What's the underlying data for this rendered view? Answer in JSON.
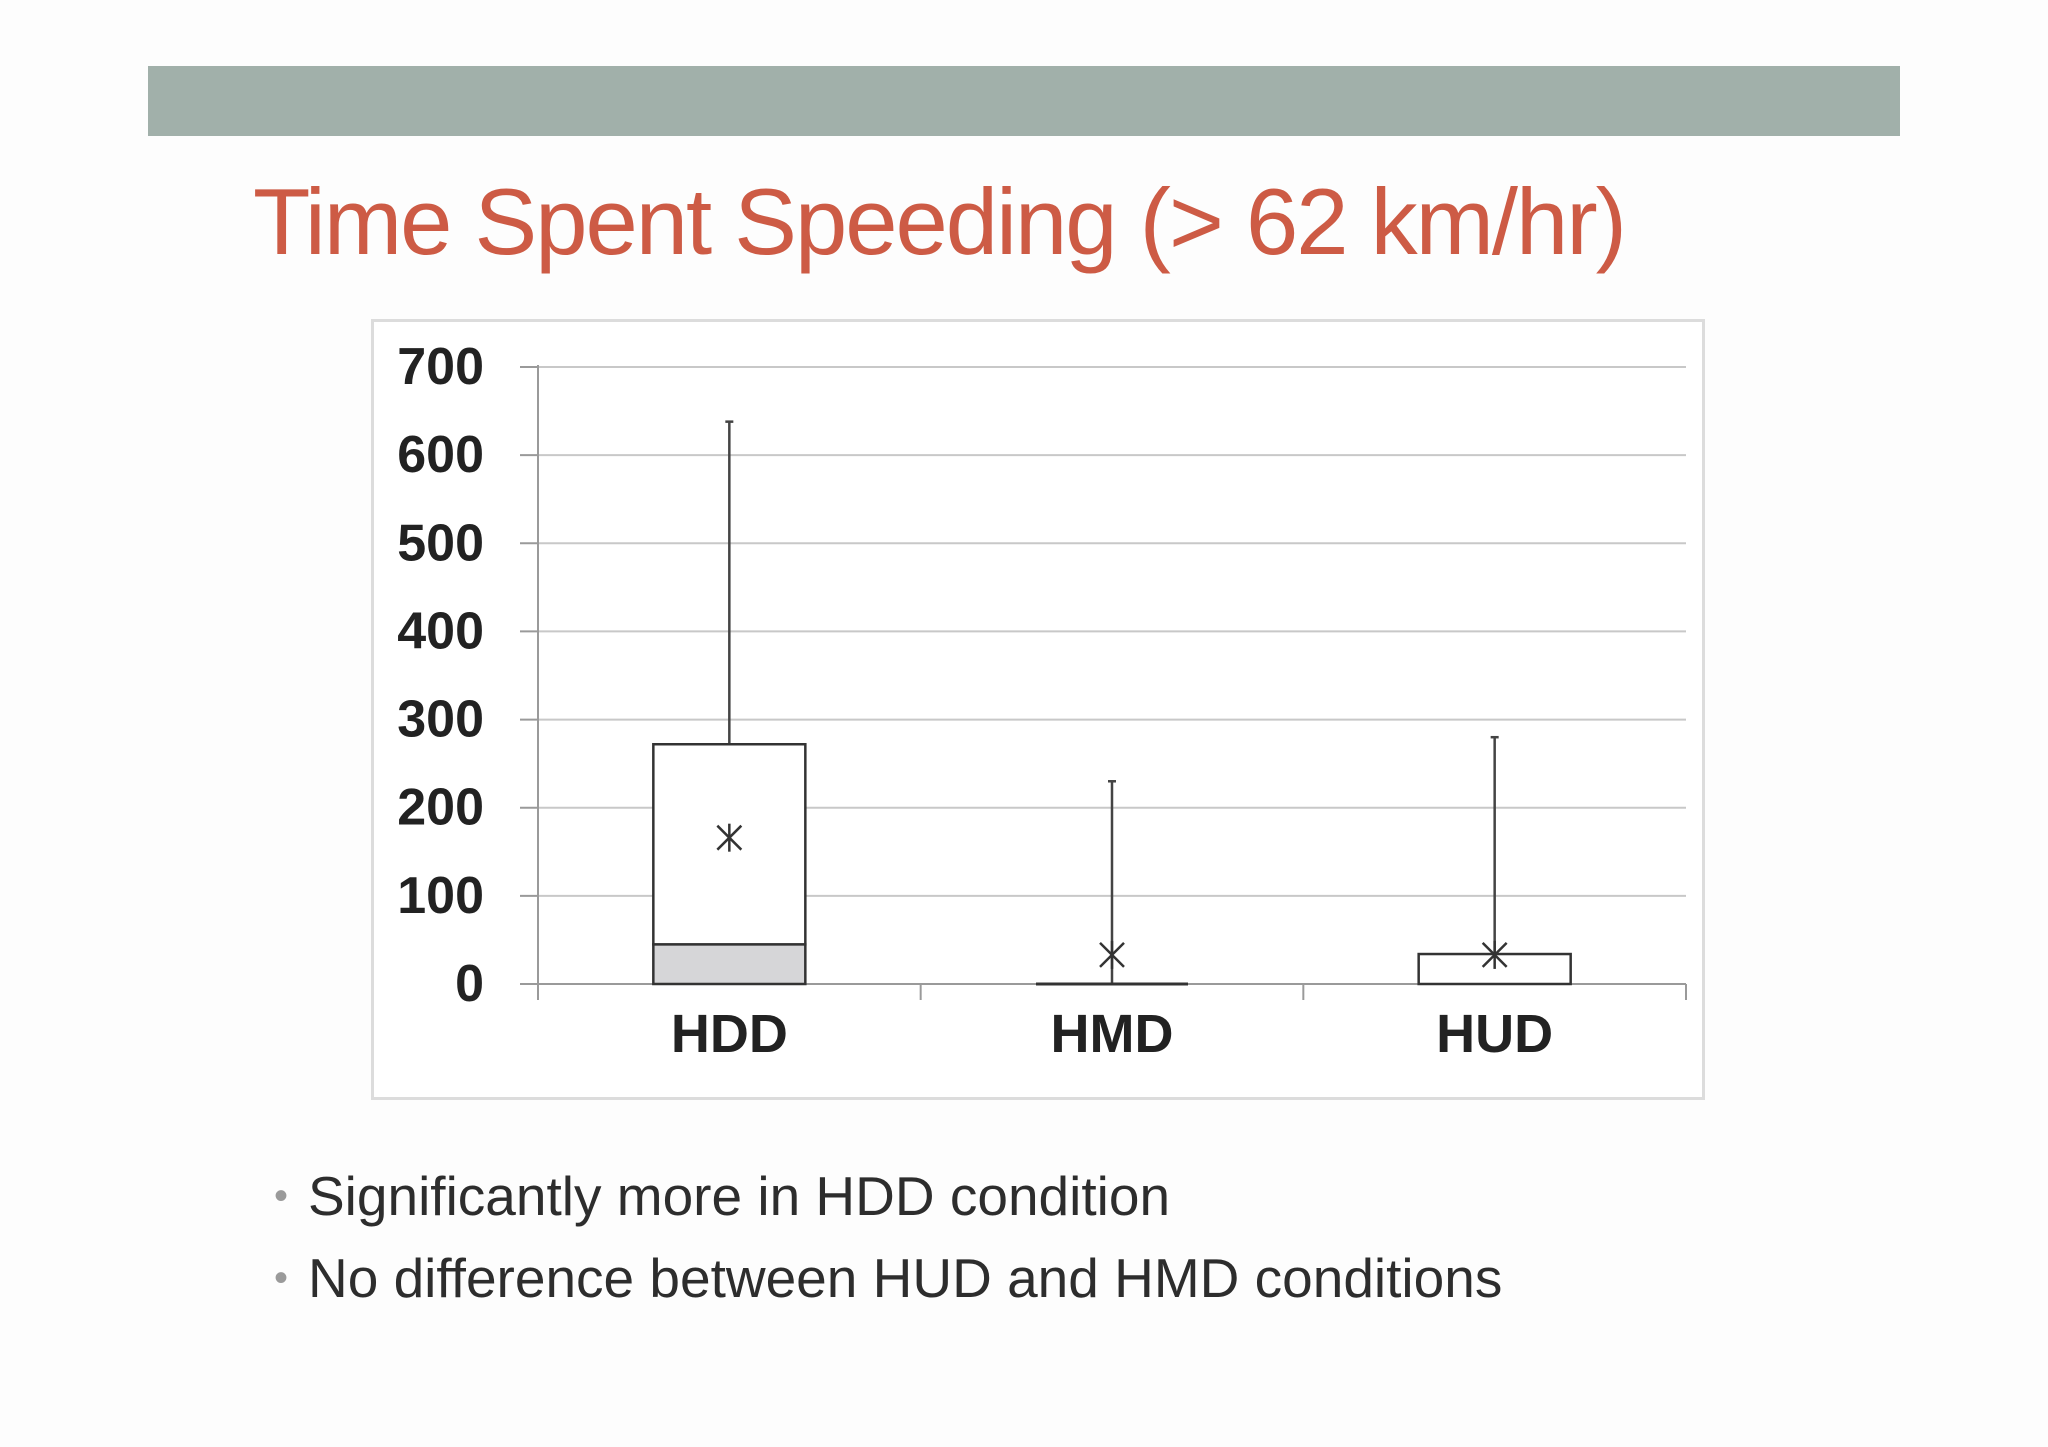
{
  "slide": {
    "title": "Time Spent Speeding (> 62 km/hr)",
    "bullets": [
      "Significantly more in HDD condition",
      "No difference between HUD and HMD conditions"
    ]
  },
  "colors": {
    "title": "#cd5b45",
    "top_bar": "#a1b0aa",
    "box_lower": "#d6d6d8",
    "gridline": "#c8c8c8"
  },
  "chart_data": {
    "type": "boxplot",
    "title": "",
    "xlabel": "",
    "ylabel": "",
    "ylim": [
      0,
      700
    ],
    "yticks": [
      0,
      100,
      200,
      300,
      400,
      500,
      600,
      700
    ],
    "ytick_labels": [
      "0",
      "100",
      "200",
      "300",
      "400",
      "500",
      "600",
      "700"
    ],
    "grid": true,
    "categories": [
      "HDD",
      "HMD",
      "HUD"
    ],
    "boxes": [
      {
        "category": "HDD",
        "min": 0,
        "q1": 0,
        "median": 45,
        "q3": 272,
        "max": 638,
        "mean": 166
      },
      {
        "category": "HMD",
        "min": 0,
        "q1": 0,
        "median": 0,
        "q3": 0,
        "max": 230,
        "mean": 33
      },
      {
        "category": "HUD",
        "min": 0,
        "q1": 0,
        "median": 0,
        "q3": 34,
        "max": 280,
        "mean": 33
      }
    ]
  }
}
